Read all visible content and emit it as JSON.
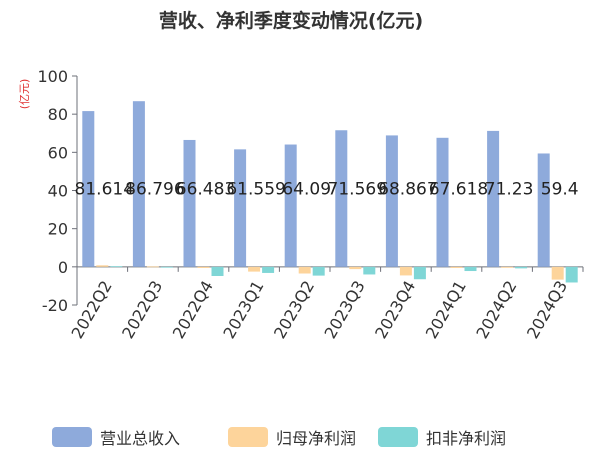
{
  "chart_data": {
    "type": "bar",
    "title": "营收、净利季度变动情况(亿元)",
    "ylabel": "(亿元)",
    "xlabel": "",
    "ylim": [
      -20,
      100
    ],
    "yticks": [
      -20,
      0,
      20,
      40,
      60,
      80,
      100
    ],
    "grid": false,
    "legend_position": "bottom",
    "categories": [
      "2022Q2",
      "2022Q3",
      "2022Q4",
      "2023Q1",
      "2023Q2",
      "2023Q3",
      "2023Q4",
      "2024Q1",
      "2024Q2",
      "2024Q3"
    ],
    "series": [
      {
        "name": "营业总收入",
        "color": "#8eaadb",
        "values": [
          81.614,
          86.796,
          66.483,
          61.559,
          64.09,
          71.569,
          68.867,
          67.618,
          71.23,
          59.4
        ]
      },
      {
        "name": "归母净利润",
        "color": "#fdd49b",
        "values": [
          0.8,
          0.2,
          -0.6,
          -2.5,
          -3.5,
          -1.2,
          -4.5,
          -0.6,
          -0.5,
          -6.7
        ]
      },
      {
        "name": "扣非净利润",
        "color": "#7fd6d6",
        "values": [
          0.3,
          -0.2,
          -4.8,
          -3.2,
          -4.6,
          -4.0,
          -6.5,
          -2.2,
          -0.8,
          -8.2
        ]
      }
    ],
    "data_labels": [
      "81.614",
      "86.796",
      "66.483",
      "61.559",
      "64.09",
      "71.569",
      "68.867",
      "67.618",
      "71.23",
      "59.4"
    ]
  }
}
